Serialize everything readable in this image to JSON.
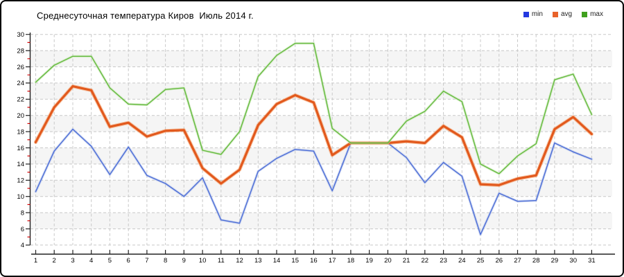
{
  "title": "Среднесуточная температура Киров  Июль 2014 г.",
  "legend": [
    {
      "id": "min",
      "label": "min",
      "color": "#2438e0"
    },
    {
      "id": "avg",
      "label": "avg",
      "color": "#e8622a"
    },
    {
      "id": "max",
      "label": "max",
      "color": "#3fa01e"
    }
  ],
  "colors": {
    "band": "#f5f5f5",
    "grid": "#c8c8c8",
    "axis": "#222222",
    "minor_tick": "#d40000",
    "tick_label": "#000000"
  },
  "chart_data": {
    "type": "line",
    "title": "Среднесуточная температура Киров  Июль 2014 г.",
    "xlabel": "",
    "ylabel": "",
    "x": [
      1,
      2,
      3,
      4,
      5,
      6,
      7,
      8,
      9,
      10,
      11,
      12,
      13,
      14,
      15,
      16,
      17,
      18,
      19,
      20,
      21,
      22,
      23,
      24,
      25,
      26,
      27,
      28,
      29,
      30,
      31
    ],
    "series": [
      {
        "name": "min",
        "color": "#4b6cd6",
        "halo": "#aebfe9",
        "width": 1.4,
        "values": [
          10.6,
          15.6,
          18.3,
          16.2,
          12.7,
          16.1,
          12.6,
          11.6,
          10.0,
          12.3,
          7.1,
          6.7,
          13.1,
          14.7,
          15.8,
          15.6,
          10.7,
          16.6,
          16.6,
          16.6,
          14.8,
          11.7,
          14.2,
          12.5,
          5.3,
          10.4,
          9.4,
          9.5,
          16.6,
          15.5,
          14.6
        ]
      },
      {
        "name": "avg",
        "color": "#e2591d",
        "halo": "#f4a06a",
        "width": 3.2,
        "values": [
          16.7,
          21.0,
          23.6,
          23.1,
          18.6,
          19.1,
          17.4,
          18.1,
          18.2,
          13.5,
          11.6,
          13.3,
          18.8,
          21.4,
          22.5,
          21.6,
          15.1,
          16.6,
          16.6,
          16.6,
          16.8,
          16.6,
          18.7,
          17.3,
          11.5,
          11.4,
          12.2,
          12.6,
          18.3,
          19.8,
          17.7
        ]
      },
      {
        "name": "max",
        "color": "#63b93e",
        "halo": "#bfe3a8",
        "width": 1.4,
        "values": [
          24.1,
          26.2,
          27.3,
          27.3,
          23.4,
          21.4,
          21.3,
          23.2,
          23.4,
          15.7,
          15.2,
          18.0,
          24.8,
          27.4,
          28.9,
          28.9,
          18.4,
          16.6,
          16.6,
          16.6,
          19.3,
          20.5,
          23.0,
          21.7,
          14.0,
          12.8,
          15.0,
          16.5,
          24.4,
          25.1,
          20.1
        ]
      }
    ],
    "ylim": [
      4,
      30
    ],
    "yticks": [
      4,
      6,
      8,
      10,
      12,
      14,
      16,
      18,
      20,
      22,
      24,
      26,
      28,
      30
    ],
    "yticks_minor": [
      5,
      7,
      9,
      11,
      13,
      15,
      17,
      19,
      21,
      23,
      25,
      27,
      29
    ],
    "grid": "dashed",
    "band_stripes": true,
    "legend_position": "top-right"
  }
}
